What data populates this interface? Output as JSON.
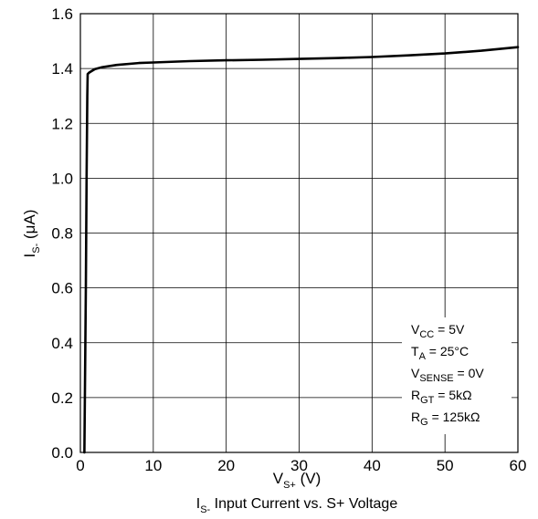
{
  "chart_data": {
    "type": "line",
    "caption": {
      "main": "I",
      "sub": "S-",
      "rest": " Input Current vs. S+ Voltage"
    },
    "xlabel": {
      "main": "V",
      "sub": "S+",
      "rest": " (V)"
    },
    "ylabel": {
      "main": "I",
      "sub": "S-",
      "rest": " (μA)"
    },
    "xlim": [
      0,
      60
    ],
    "ylim": [
      0,
      1.6
    ],
    "x_ticks": [
      "0",
      "10",
      "20",
      "30",
      "40",
      "50",
      "60"
    ],
    "y_ticks": [
      "0.0",
      "0.2",
      "0.4",
      "0.6",
      "0.8",
      "1.0",
      "1.2",
      "1.4",
      "1.6"
    ],
    "x_tick_values": [
      0,
      10,
      20,
      30,
      40,
      50,
      60
    ],
    "y_tick_values": [
      0,
      0.2,
      0.4,
      0.6,
      0.8,
      1.0,
      1.2,
      1.4,
      1.6
    ],
    "grid": true,
    "series": [
      {
        "x": [
          0.55,
          0.75,
          0.85,
          0.95,
          1.0,
          1.2,
          1.5,
          2,
          3,
          5,
          8,
          10,
          15,
          20,
          25,
          30,
          35,
          40,
          45,
          50,
          55,
          60
        ],
        "y": [
          0.0,
          0.6,
          1.0,
          1.3,
          1.38,
          1.385,
          1.39,
          1.398,
          1.405,
          1.413,
          1.42,
          1.422,
          1.427,
          1.43,
          1.432,
          1.435,
          1.438,
          1.442,
          1.448,
          1.455,
          1.465,
          1.478
        ]
      }
    ],
    "conditions": [
      {
        "main": "V",
        "sub": "CC",
        "rest": " = 5V"
      },
      {
        "main": "T",
        "sub": "A",
        "rest": " = 25°C"
      },
      {
        "main": "V",
        "sub": "SENSE",
        "rest": " = 0V"
      },
      {
        "main": "R",
        "sub": "GT",
        "rest": " = 5kΩ"
      },
      {
        "main": "R",
        "sub": "G",
        "rest": " = 125kΩ"
      }
    ],
    "line_color": "#000000"
  }
}
